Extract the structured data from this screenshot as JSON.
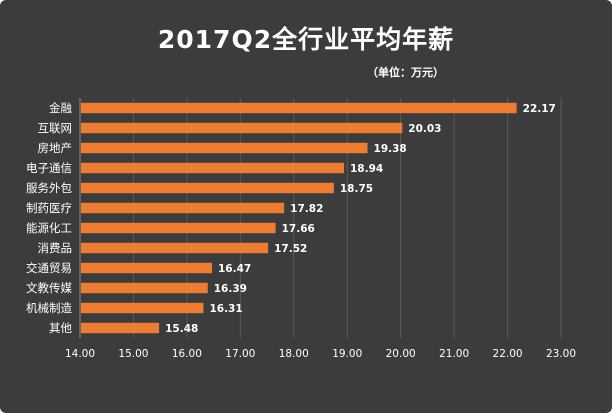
{
  "chart_data": {
    "type": "bar",
    "orientation": "horizontal",
    "title": "2017Q2全行业平均年薪",
    "unit_note": "（单位：万元）",
    "categories": [
      "金融",
      "互联网",
      "房地产",
      "电子通信",
      "服务外包",
      "制药医疗",
      "能源化工",
      "消费品",
      "交通贸易",
      "文教传媒",
      "机械制造",
      "其他"
    ],
    "values": [
      22.17,
      20.03,
      19.38,
      18.94,
      18.75,
      17.82,
      17.66,
      17.52,
      16.47,
      16.39,
      16.31,
      15.48
    ],
    "value_labels": [
      "22.17",
      "20.03",
      "19.38",
      "18.94",
      "18.75",
      "17.82",
      "17.66",
      "17.52",
      "16.47",
      "16.39",
      "16.31",
      "15.48"
    ],
    "xlim": [
      14,
      23
    ],
    "xticks": [
      "14.00",
      "15.00",
      "16.00",
      "17.00",
      "18.00",
      "19.00",
      "20.00",
      "21.00",
      "22.00",
      "23.00"
    ],
    "xlabel": "",
    "ylabel": "",
    "grid": true,
    "colors": {
      "background": "#3c3c3c",
      "bar": "#ee7d31",
      "text": "#ffffff",
      "grid": "#5a5a5a"
    }
  }
}
